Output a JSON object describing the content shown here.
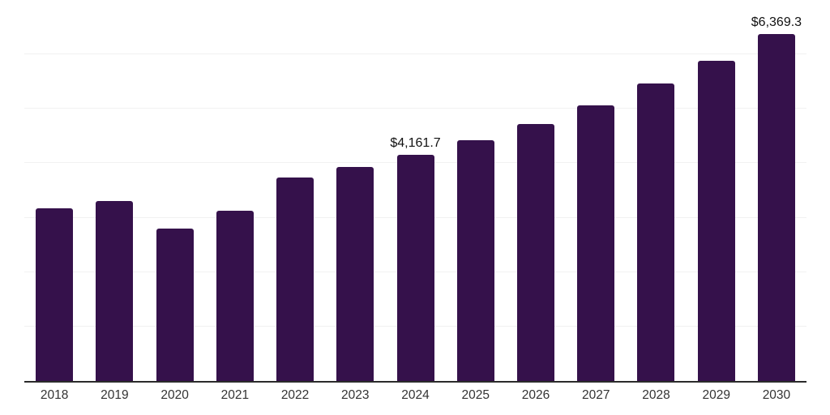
{
  "chart_data": {
    "type": "bar",
    "categories": [
      "2018",
      "2019",
      "2020",
      "2021",
      "2022",
      "2023",
      "2024",
      "2025",
      "2026",
      "2027",
      "2028",
      "2029",
      "2030"
    ],
    "values": [
      3180,
      3300,
      2805,
      3135,
      3745,
      3925,
      4161.7,
      4420,
      4715,
      5060,
      5460,
      5880,
      6369.3
    ],
    "data_labels": {
      "2024": "$4,161.7",
      "2030": "$6,369.3"
    },
    "ylim": [
      0,
      7000
    ],
    "grid_step": 1000,
    "grid": true,
    "legend_position": "none",
    "y_tick_labels_visible": false,
    "colors": {
      "bar": "#35114B",
      "gridline": "#f1f1f1",
      "axis_line": "#2b2b2b",
      "tick_text": "#333333",
      "data_label_text": "#111111"
    }
  }
}
